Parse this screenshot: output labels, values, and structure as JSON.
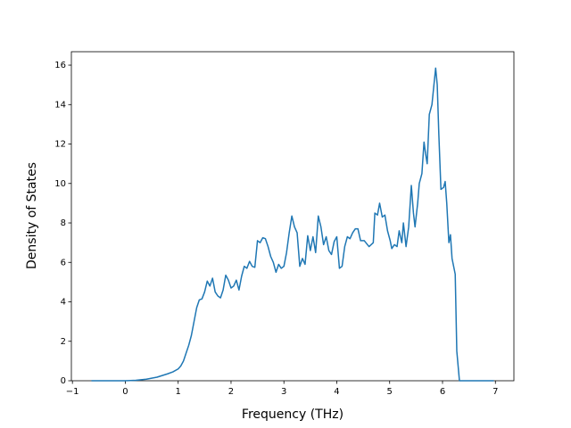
{
  "chart_data": {
    "type": "line",
    "x_label": "Frequency (THz)",
    "y_label": "Density of States",
    "x": [
      -0.64,
      0,
      0.2,
      0.4,
      0.6,
      0.8,
      0.9,
      1.0,
      1.05,
      1.1,
      1.15,
      1.2,
      1.25,
      1.3,
      1.35,
      1.4,
      1.45,
      1.5,
      1.55,
      1.6,
      1.65,
      1.7,
      1.75,
      1.8,
      1.85,
      1.9,
      1.95,
      2.0,
      2.05,
      2.1,
      2.15,
      2.2,
      2.25,
      2.3,
      2.35,
      2.4,
      2.45,
      2.5,
      2.55,
      2.6,
      2.65,
      2.7,
      2.75,
      2.8,
      2.85,
      2.9,
      2.95,
      3.0,
      3.05,
      3.1,
      3.15,
      3.2,
      3.25,
      3.3,
      3.35,
      3.4,
      3.45,
      3.5,
      3.55,
      3.6,
      3.65,
      3.7,
      3.75,
      3.8,
      3.85,
      3.9,
      3.95,
      4.0,
      4.05,
      4.1,
      4.15,
      4.2,
      4.25,
      4.3,
      4.35,
      4.4,
      4.45,
      4.52,
      4.61,
      4.69,
      4.72,
      4.77,
      4.81,
      4.86,
      4.91,
      4.96,
      5.01,
      5.04,
      5.09,
      5.14,
      5.18,
      5.23,
      5.26,
      5.31,
      5.36,
      5.41,
      5.45,
      5.48,
      5.53,
      5.56,
      5.61,
      5.65,
      5.68,
      5.71,
      5.75,
      5.8,
      5.83,
      5.87,
      5.9,
      5.93,
      5.97,
      6.02,
      6.05,
      6.08,
      6.12,
      6.15,
      6.18,
      6.24,
      6.27,
      6.32,
      6.97
    ],
    "series": [
      {
        "color": "#1f77b4",
        "values": [
          0,
          0,
          0.02,
          0.08,
          0.18,
          0.35,
          0.45,
          0.6,
          0.75,
          1.0,
          1.4,
          1.8,
          2.3,
          3.0,
          3.7,
          4.1,
          4.15,
          4.5,
          5.05,
          4.8,
          5.2,
          4.5,
          4.3,
          4.2,
          4.6,
          5.35,
          5.1,
          4.7,
          4.8,
          5.1,
          4.6,
          5.3,
          5.8,
          5.7,
          6.05,
          5.8,
          5.75,
          7.1,
          7.0,
          7.25,
          7.2,
          6.8,
          6.3,
          6.0,
          5.5,
          5.9,
          5.7,
          5.8,
          6.5,
          7.5,
          8.35,
          7.8,
          7.5,
          5.8,
          6.2,
          5.9,
          7.35,
          6.6,
          7.3,
          6.5,
          8.35,
          7.8,
          6.9,
          7.3,
          6.6,
          6.4,
          7.05,
          7.3,
          5.7,
          5.8,
          6.8,
          7.3,
          7.2,
          7.5,
          7.7,
          7.7,
          7.1,
          7.1,
          6.8,
          7.0,
          8.5,
          8.4,
          9.0,
          8.3,
          8.4,
          7.6,
          7.1,
          6.7,
          6.9,
          6.8,
          7.6,
          7.0,
          8.0,
          6.8,
          7.8,
          9.9,
          8.5,
          7.8,
          9.0,
          10.0,
          10.5,
          12.1,
          11.5,
          11.0,
          13.5,
          14.0,
          14.8,
          15.85,
          15.0,
          12.5,
          9.7,
          9.8,
          10.1,
          9.0,
          7.0,
          7.4,
          6.2,
          5.4,
          1.5,
          0,
          0
        ]
      }
    ],
    "xlim": [
      -1.02,
      7.35
    ],
    "ylim": [
      0,
      16.68
    ],
    "xticks": [
      {
        "value": -1,
        "label": "−1"
      },
      0,
      1,
      2,
      3,
      4,
      5,
      6,
      7
    ],
    "yticks": [
      0,
      2,
      4,
      6,
      8,
      10,
      12,
      14,
      16
    ]
  }
}
